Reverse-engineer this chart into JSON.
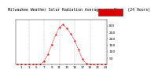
{
  "title": "Milwaukee Weather Solar Radiation Average per Hour (24 Hours)",
  "hours": [
    0,
    1,
    2,
    3,
    4,
    5,
    6,
    7,
    8,
    9,
    10,
    11,
    12,
    13,
    14,
    15,
    16,
    17,
    18,
    19,
    20,
    21,
    22,
    23
  ],
  "values": [
    0,
    0,
    0,
    0,
    0,
    0,
    2,
    25,
    80,
    155,
    230,
    290,
    310,
    280,
    240,
    185,
    115,
    45,
    8,
    0,
    0,
    0,
    0,
    0
  ],
  "ylim": [
    0,
    350
  ],
  "yticks": [
    50,
    100,
    150,
    200,
    250,
    300
  ],
  "ytick_labels": [
    "50",
    "100",
    "150",
    "200",
    "250",
    "300"
  ],
  "xtick_hours": [
    1,
    3,
    5,
    7,
    9,
    11,
    13,
    15,
    17,
    19,
    21,
    23
  ],
  "line_color": "#ff0000",
  "dot_color": "#ff0000",
  "bg_color": "#ffffff",
  "plot_bg": "#ffffff",
  "grid_color": "#888888",
  "legend_bg": "#dd0000",
  "xlabel_fontsize": 3.0,
  "ylabel_fontsize": 3.2,
  "title_fontsize": 3.5
}
